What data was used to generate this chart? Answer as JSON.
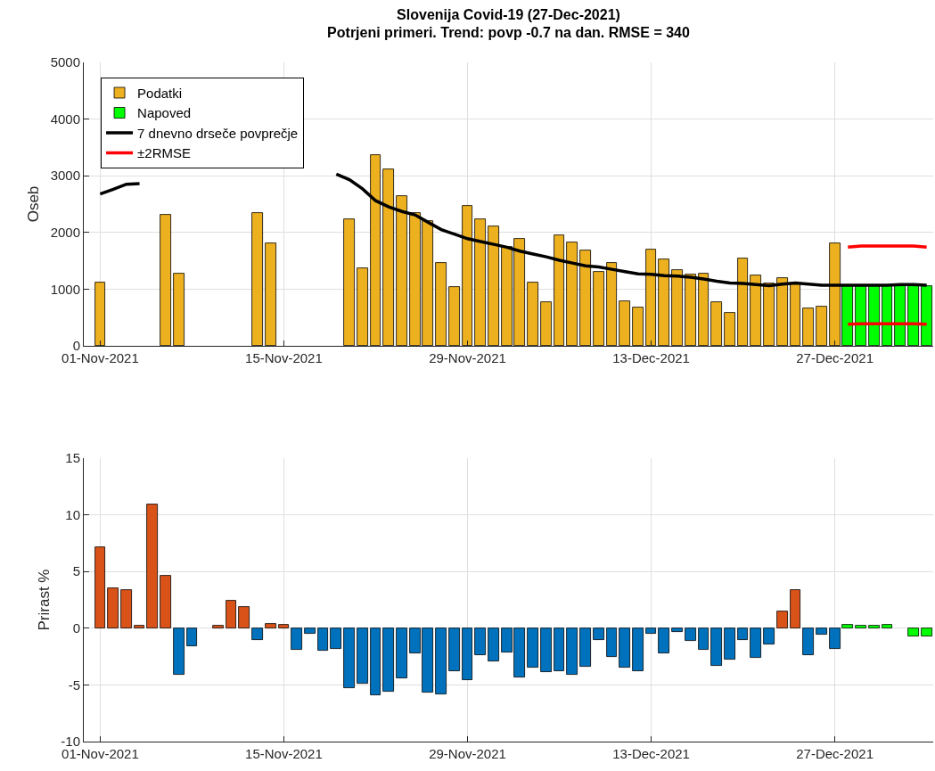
{
  "chart_data": [
    {
      "type": "bar",
      "title": "Slovenija Covid-19 (27-Dec-2021)\nPotrjeni primeri. Trend: povp -0.7 na dan. RMSE = 340",
      "ylabel": "Oseb",
      "x": [
        "2021-11-01",
        "2021-11-02",
        "2021-11-03",
        "2021-11-04",
        "2021-11-05",
        "2021-11-06",
        "2021-11-07",
        "2021-11-08",
        "2021-11-09",
        "2021-11-10",
        "2021-11-11",
        "2021-11-12",
        "2021-11-13",
        "2021-11-14",
        "2021-11-15",
        "2021-11-16",
        "2021-11-17",
        "2021-11-18",
        "2021-11-19",
        "2021-11-20",
        "2021-11-21",
        "2021-11-22",
        "2021-11-23",
        "2021-11-24",
        "2021-11-25",
        "2021-11-26",
        "2021-11-27",
        "2021-11-28",
        "2021-11-29",
        "2021-11-30",
        "2021-12-01",
        "2021-12-02",
        "2021-12-03",
        "2021-12-04",
        "2021-12-05",
        "2021-12-06",
        "2021-12-07",
        "2021-12-08",
        "2021-12-09",
        "2021-12-10",
        "2021-12-11",
        "2021-12-12",
        "2021-12-13",
        "2021-12-14",
        "2021-12-15",
        "2021-12-16",
        "2021-12-17",
        "2021-12-18",
        "2021-12-19",
        "2021-12-20",
        "2021-12-21",
        "2021-12-22",
        "2021-12-23",
        "2021-12-24",
        "2021-12-25",
        "2021-12-26",
        "2021-12-27",
        "2021-12-28",
        "2021-12-29",
        "2021-12-30",
        "2021-12-31",
        "2022-01-01",
        "2022-01-02",
        "2022-01-03"
      ],
      "series": [
        {
          "name": "Podatki",
          "type": "bar",
          "color": "#edb120",
          "values": [
            1120,
            null,
            null,
            null,
            null,
            2310,
            1280,
            null,
            null,
            null,
            null,
            null,
            2350,
            1810,
            null,
            null,
            null,
            null,
            null,
            2230,
            1370,
            3370,
            3120,
            2640,
            2350,
            2200,
            1460,
            1030,
            2470,
            2240,
            2110,
            1740,
            1890,
            1110,
            770,
            1950,
            1830,
            1680,
            1310,
            1460,
            790,
            670,
            1700,
            1520,
            1340,
            1260,
            1280,
            770,
            580,
            1540,
            1240,
            1100,
            1200,
            1080,
            660,
            690,
            1810,
            null,
            null,
            null,
            null,
            null,
            null,
            null
          ]
        },
        {
          "name": "Napoved",
          "type": "bar",
          "color": "#00ff00",
          "values": [
            null,
            null,
            null,
            null,
            null,
            null,
            null,
            null,
            null,
            null,
            null,
            null,
            null,
            null,
            null,
            null,
            null,
            null,
            null,
            null,
            null,
            null,
            null,
            null,
            null,
            null,
            null,
            null,
            null,
            null,
            null,
            null,
            null,
            null,
            null,
            null,
            null,
            null,
            null,
            null,
            null,
            null,
            null,
            null,
            null,
            null,
            null,
            null,
            null,
            null,
            null,
            null,
            null,
            null,
            null,
            null,
            null,
            1050,
            1050,
            1050,
            1050,
            1050,
            1050,
            1050
          ]
        },
        {
          "name": "7 dnevno drseče povprečje",
          "type": "line",
          "color": "#000000",
          "values": [
            2680,
            2760,
            2850,
            2860,
            null,
            null,
            null,
            null,
            null,
            null,
            null,
            null,
            null,
            null,
            null,
            null,
            null,
            null,
            3030,
            2930,
            2770,
            2560,
            2450,
            2370,
            2310,
            2180,
            2050,
            1970,
            1890,
            1840,
            1790,
            1740,
            1670,
            1620,
            1570,
            1510,
            1460,
            1410,
            1390,
            1350,
            1310,
            1270,
            1260,
            1240,
            1230,
            1210,
            1180,
            1140,
            1110,
            1100,
            1080,
            1060,
            1090,
            1110,
            1090,
            1070,
            1070,
            1070,
            1070,
            1070,
            1070,
            1080,
            1080,
            1070
          ]
        },
        {
          "name": "±2RMSE",
          "type": "line",
          "color": "#ff0000",
          "values": [
            null,
            null,
            null,
            null,
            null,
            null,
            null,
            null,
            null,
            null,
            null,
            null,
            null,
            null,
            null,
            null,
            null,
            null,
            null,
            null,
            null,
            null,
            null,
            null,
            null,
            null,
            null,
            null,
            null,
            null,
            null,
            null,
            null,
            null,
            null,
            null,
            null,
            null,
            null,
            null,
            null,
            null,
            null,
            null,
            null,
            null,
            null,
            null,
            null,
            null,
            null,
            null,
            null,
            null,
            null,
            null,
            null,
            1740,
            1760,
            1760,
            1760,
            1760,
            1760,
            1740
          ]
        },
        {
          "type": "line",
          "color": "#ff0000",
          "values": [
            null,
            null,
            null,
            null,
            null,
            null,
            null,
            null,
            null,
            null,
            null,
            null,
            null,
            null,
            null,
            null,
            null,
            null,
            null,
            null,
            null,
            null,
            null,
            null,
            null,
            null,
            null,
            null,
            null,
            null,
            null,
            null,
            null,
            null,
            null,
            null,
            null,
            null,
            null,
            null,
            null,
            null,
            null,
            null,
            null,
            null,
            null,
            null,
            null,
            null,
            null,
            null,
            null,
            null,
            null,
            null,
            null,
            380,
            390,
            390,
            390,
            390,
            390,
            380
          ]
        }
      ],
      "xlim": [
        "2021-10-30T18:00",
        "2022-01-03T12:00"
      ],
      "xticks": [
        {
          "value": "2021-11-01",
          "label": "01-Nov-2021"
        },
        {
          "value": "2021-11-15",
          "label": "15-Nov-2021"
        },
        {
          "value": "2021-11-29",
          "label": "29-Nov-2021"
        },
        {
          "value": "2021-12-13",
          "label": "13-Dec-2021"
        },
        {
          "value": "2021-12-27",
          "label": "27-Dec-2021"
        }
      ],
      "ylim": [
        0,
        5000
      ],
      "yticks": [
        0,
        1000,
        2000,
        3000,
        4000,
        5000
      ],
      "grid": true,
      "legend": "top left"
    },
    {
      "type": "bar",
      "ylabel": "Prirast %",
      "x": [
        "2021-11-01",
        "2021-11-02",
        "2021-11-03",
        "2021-11-04",
        "2021-11-05",
        "2021-11-06",
        "2021-11-07",
        "2021-11-08",
        "2021-11-09",
        "2021-11-10",
        "2021-11-11",
        "2021-11-12",
        "2021-11-13",
        "2021-11-14",
        "2021-11-15",
        "2021-11-16",
        "2021-11-17",
        "2021-11-18",
        "2021-11-19",
        "2021-11-20",
        "2021-11-21",
        "2021-11-22",
        "2021-11-23",
        "2021-11-24",
        "2021-11-25",
        "2021-11-26",
        "2021-11-27",
        "2021-11-28",
        "2021-11-29",
        "2021-11-30",
        "2021-12-01",
        "2021-12-02",
        "2021-12-03",
        "2021-12-04",
        "2021-12-05",
        "2021-12-06",
        "2021-12-07",
        "2021-12-08",
        "2021-12-09",
        "2021-12-10",
        "2021-12-11",
        "2021-12-12",
        "2021-12-13",
        "2021-12-14",
        "2021-12-15",
        "2021-12-16",
        "2021-12-17",
        "2021-12-18",
        "2021-12-19",
        "2021-12-20",
        "2021-12-21",
        "2021-12-22",
        "2021-12-23",
        "2021-12-24",
        "2021-12-25",
        "2021-12-26",
        "2021-12-27",
        "2021-12-28",
        "2021-12-29",
        "2021-12-30",
        "2021-12-31",
        "2022-01-01",
        "2022-01-02",
        "2022-01-03"
      ],
      "values": [
        7.1,
        3.5,
        3.4,
        0.2,
        10.9,
        4.6,
        -4.1,
        -1.6,
        null,
        0.2,
        2.4,
        1.9,
        -1.0,
        0.4,
        0.3,
        -1.9,
        -0.5,
        -2.0,
        -1.8,
        -5.3,
        -4.9,
        -5.9,
        -5.6,
        -4.4,
        -2.2,
        -5.7,
        -5.8,
        -3.8,
        -4.6,
        -2.4,
        -2.9,
        -2.1,
        -4.3,
        -3.5,
        -3.9,
        -3.8,
        -4.1,
        -3.4,
        -1.0,
        -2.5,
        -3.5,
        -3.8,
        -0.5,
        -2.2,
        -0.3,
        -1.1,
        -1.9,
        -3.3,
        -2.8,
        -1.0,
        -2.6,
        -1.4,
        1.5,
        3.4,
        -2.4,
        -0.6,
        -1.8,
        0.3,
        0.2,
        0.2,
        0.3,
        null,
        -0.7,
        -0.7
      ],
      "colors": [
        "#d95319",
        "#d95319",
        "#d95319",
        "#d95319",
        "#d95319",
        "#d95319",
        "#0072bd",
        "#0072bd",
        "#d95319",
        "#d95319",
        "#d95319",
        "#d95319",
        "#0072bd",
        "#d95319",
        "#d95319",
        "#0072bd",
        "#0072bd",
        "#0072bd",
        "#0072bd",
        "#0072bd",
        "#0072bd",
        "#0072bd",
        "#0072bd",
        "#0072bd",
        "#0072bd",
        "#0072bd",
        "#0072bd",
        "#0072bd",
        "#0072bd",
        "#0072bd",
        "#0072bd",
        "#0072bd",
        "#0072bd",
        "#0072bd",
        "#0072bd",
        "#0072bd",
        "#0072bd",
        "#0072bd",
        "#0072bd",
        "#0072bd",
        "#0072bd",
        "#0072bd",
        "#0072bd",
        "#0072bd",
        "#0072bd",
        "#0072bd",
        "#0072bd",
        "#0072bd",
        "#0072bd",
        "#0072bd",
        "#0072bd",
        "#0072bd",
        "#d95319",
        "#d95319",
        "#0072bd",
        "#0072bd",
        "#0072bd",
        "#00ff00",
        "#00ff00",
        "#00ff00",
        "#00ff00",
        "#00ff00",
        "#00ff00",
        "#00ff00"
      ],
      "xlim": [
        "2021-10-30T18:00",
        "2022-01-03T12:00"
      ],
      "xticks": [
        {
          "value": "2021-11-01",
          "label": "01-Nov-2021"
        },
        {
          "value": "2021-11-15",
          "label": "15-Nov-2021"
        },
        {
          "value": "2021-11-29",
          "label": "29-Nov-2021"
        },
        {
          "value": "2021-12-13",
          "label": "13-Dec-2021"
        },
        {
          "value": "2021-12-27",
          "label": "27-Dec-2021"
        }
      ],
      "ylim": [
        -10,
        15
      ],
      "yticks": [
        -10,
        -5,
        0,
        5,
        10,
        15
      ],
      "grid": true
    }
  ]
}
